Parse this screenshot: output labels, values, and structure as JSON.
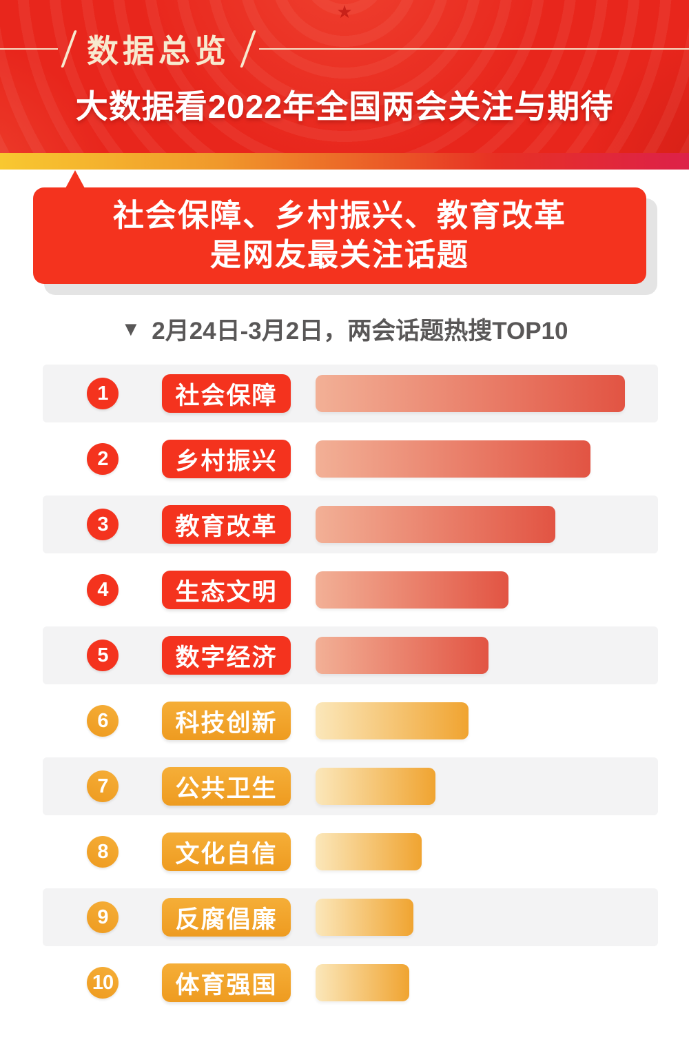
{
  "header": {
    "eyebrow": "数据总览",
    "title": "大数据看2022年全国两会关注与期待"
  },
  "highlight": {
    "line1": "社会保障、乡村振兴、教育改革",
    "line2": "是网友最关注话题"
  },
  "section": {
    "marker": "▼",
    "subtitle": "2月24日-3月2日，两会话题热搜TOP10"
  },
  "decorations": {
    "star": "★"
  },
  "chart_data": {
    "type": "bar",
    "orientation": "horizontal",
    "title": "两会话题热搜TOP10",
    "period": "2月24日-3月2日",
    "value_note": "heat index relative to top topic (percent, estimated from bar lengths; no numeric labels shown)",
    "categories": [
      "社会保障",
      "乡村振兴",
      "教育改革",
      "生态文明",
      "数字经济",
      "科技创新",
      "公共卫生",
      "文化自信",
      "反腐倡廉",
      "体育强国"
    ],
    "values": [
      100,
      88.9,
      77.5,
      62.4,
      55.9,
      49.4,
      38.8,
      34.3,
      31.6,
      30.3
    ],
    "rows": [
      {
        "rank": 1,
        "topic": "社会保障",
        "value": 100,
        "theme": "red"
      },
      {
        "rank": 2,
        "topic": "乡村振兴",
        "value": 88.9,
        "theme": "red"
      },
      {
        "rank": 3,
        "topic": "教育改革",
        "value": 77.5,
        "theme": "red"
      },
      {
        "rank": 4,
        "topic": "生态文明",
        "value": 62.4,
        "theme": "red"
      },
      {
        "rank": 5,
        "topic": "数字经济",
        "value": 55.9,
        "theme": "red"
      },
      {
        "rank": 6,
        "topic": "科技创新",
        "value": 49.4,
        "theme": "gold"
      },
      {
        "rank": 7,
        "topic": "公共卫生",
        "value": 38.8,
        "theme": "gold"
      },
      {
        "rank": 8,
        "topic": "文化自信",
        "value": 34.3,
        "theme": "gold"
      },
      {
        "rank": 9,
        "topic": "反腐倡廉",
        "value": 31.6,
        "theme": "gold"
      },
      {
        "rank": 10,
        "topic": "体育强国",
        "value": 30.3,
        "theme": "gold"
      }
    ],
    "legend": "none",
    "grid": "off",
    "axis_labels": "none"
  },
  "theme_colors": {
    "header_red": "#e8261c",
    "primary_red": "#f4331e",
    "cream": "#f7ead0",
    "subtitle_gray": "#595757",
    "row_stripe": "#f3f3f4",
    "gold_light": "#f5ae38",
    "gold_deep": "#ee9b20",
    "red_bar_start": "#f2b096",
    "red_bar_end": "#e25443",
    "gold_bar_start": "#fbe7ba",
    "gold_bar_end": "#f0a431"
  }
}
